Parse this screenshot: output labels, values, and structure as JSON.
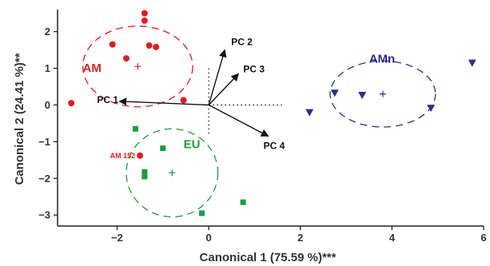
{
  "chart_data": {
    "type": "scatter",
    "title": "",
    "xlabel": "Canonical 1 (75.59 %)***",
    "ylabel": "Canonical 2 (24.41 %)**",
    "xlim": [
      -3.3,
      6.0
    ],
    "ylim": [
      -3.3,
      2.6
    ],
    "x_ticks": [
      -2,
      0,
      2,
      4,
      6
    ],
    "x_tick_labels": [
      "−2",
      "0",
      "2",
      "4",
      "6"
    ],
    "y_ticks": [
      2,
      1,
      0,
      -1,
      -2,
      -3
    ],
    "y_tick_labels": [
      "2",
      "1",
      "0",
      "−1",
      "−2",
      "−3"
    ],
    "grid": false,
    "series": [
      {
        "name": "AM",
        "color": "#e01b24",
        "marker": "circle",
        "points": [
          [
            -1.4,
            2.5
          ],
          [
            -1.4,
            2.3
          ],
          [
            -2.1,
            1.65
          ],
          [
            -1.3,
            1.62
          ],
          [
            -1.15,
            1.58
          ],
          [
            -1.8,
            1.27
          ],
          [
            -0.55,
            0.13
          ],
          [
            -3.0,
            0.05
          ],
          [
            -1.5,
            -1.38
          ]
        ],
        "centroid": [
          -1.55,
          1.05
        ],
        "ellipse": {
          "cx": -1.55,
          "cy": 1.05,
          "rx": 1.2,
          "ry": 1.1
        }
      },
      {
        "name": "EU",
        "color": "#1a9e3a",
        "marker": "square",
        "points": [
          [
            -1.6,
            -0.65
          ],
          [
            -1.0,
            -1.18
          ],
          [
            -1.4,
            -1.83
          ],
          [
            -1.4,
            -1.95
          ],
          [
            0.75,
            -2.65
          ],
          [
            -0.15,
            -2.95
          ]
        ],
        "centroid": [
          -0.8,
          -1.85
        ],
        "ellipse": {
          "cx": -0.8,
          "cy": -1.85,
          "rx": 1.0,
          "ry": 1.2
        }
      },
      {
        "name": "AMn",
        "color": "#2b2e8c",
        "marker": "triangle-down",
        "points": [
          [
            5.75,
            1.15
          ],
          [
            2.75,
            0.33
          ],
          [
            3.35,
            0.27
          ],
          [
            2.2,
            -0.2
          ],
          [
            4.85,
            -0.08
          ]
        ],
        "centroid": [
          3.8,
          0.3
        ],
        "ellipse": {
          "cx": 3.8,
          "cy": 0.3,
          "rx": 1.15,
          "ry": 0.9
        }
      }
    ],
    "point_annotations": [
      {
        "text": "AM 152",
        "x": -1.5,
        "y": -1.38,
        "color": "#e01b24"
      }
    ],
    "loadings": [
      {
        "label": "PC 1",
        "x": -1.95,
        "y": 0.1
      },
      {
        "label": "PC 2",
        "x": 0.35,
        "y": 1.5
      },
      {
        "label": "PC 3",
        "x": 0.65,
        "y": 0.85
      },
      {
        "label": "PC 4",
        "x": 1.3,
        "y": -0.85
      }
    ],
    "reference_lines": {
      "x": 0,
      "y": 0,
      "style": "dotted"
    }
  }
}
